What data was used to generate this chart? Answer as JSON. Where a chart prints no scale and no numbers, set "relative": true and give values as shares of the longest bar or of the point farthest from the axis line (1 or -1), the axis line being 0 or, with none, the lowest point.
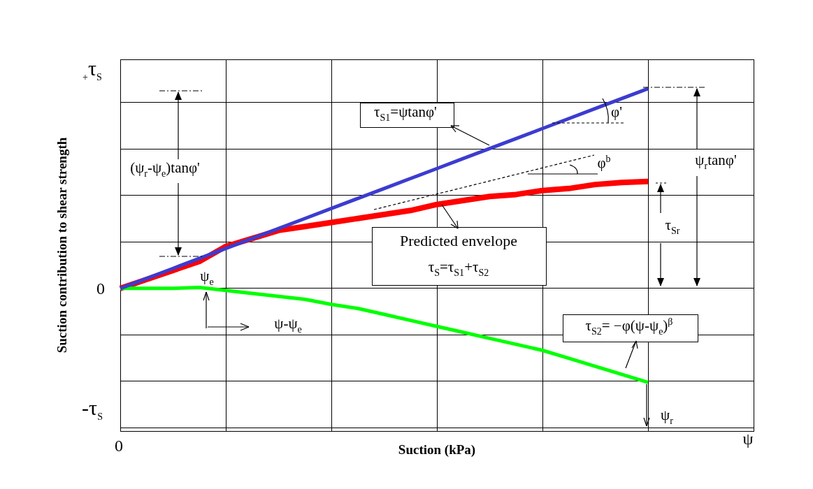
{
  "chart_data": {
    "type": "line",
    "relative": true,
    "grid": true,
    "marker": "none",
    "legend": false,
    "xlabel": "Suction (kPa)",
    "ylabel": "Suction contribution to shear strength",
    "categories": [
      null,
      null,
      null,
      null,
      null,
      null,
      null,
      null,
      null,
      null,
      null,
      null,
      null,
      null,
      null,
      null,
      null,
      null,
      null,
      null,
      null,
      null,
      null,
      null,
      null
    ],
    "series": [
      {
        "color": "#3c3cd0",
        "values": [
          0,
          0.05,
          0.1,
          0.15,
          0.2,
          0.25,
          0.3,
          0.35,
          0.4,
          0.45,
          0.5,
          0.55,
          0.6,
          0.65,
          0.7,
          0.75,
          0.8,
          0.85,
          0.9,
          0.95,
          1,
          null,
          null,
          null,
          null
        ]
      },
      {
        "color": "#ff0000",
        "values": [
          0,
          0.045,
          0.09,
          0.135,
          0.21,
          0.25,
          0.29,
          0.31,
          0.33,
          0.35,
          0.37,
          0.39,
          0.42,
          0.44,
          0.46,
          0.47,
          0.49,
          0.5,
          0.52,
          0.53,
          0.535,
          null,
          null,
          null,
          null
        ]
      },
      {
        "color": "#00ff00",
        "values": [
          0,
          0,
          0,
          0.005,
          -0.01,
          -0.025,
          -0.04,
          -0.055,
          -0.08,
          -0.1,
          -0.13,
          -0.16,
          -0.19,
          -0.22,
          -0.25,
          -0.28,
          -0.31,
          -0.35,
          -0.39,
          -0.43,
          -0.47,
          null,
          null,
          null,
          null
        ]
      }
    ],
    "annotations": [
      "$_{+}$τ$_{S}$",
      "-τ$_{S}$",
      "0",
      "0",
      "ψ",
      "(ψ$_{r}$-ψ$_{e}$)tanφ'",
      "τ$_{S1}$=ψtanφ'",
      "φ'",
      "φ$^{b}$",
      "ψ$_{r}$tanφ'",
      "τ$_{Sr}$",
      "Predicted envelope",
      "τ$_{S}$=τ$_{S1}$+τ$_{S2}$",
      "ψ$_{e}$",
      "ψ-ψ$_{e}$",
      "τ$_{S2}$= −φ(ψ-ψ$_{e}$)$^{β}$",
      "ψ$_{r}$"
    ]
  }
}
